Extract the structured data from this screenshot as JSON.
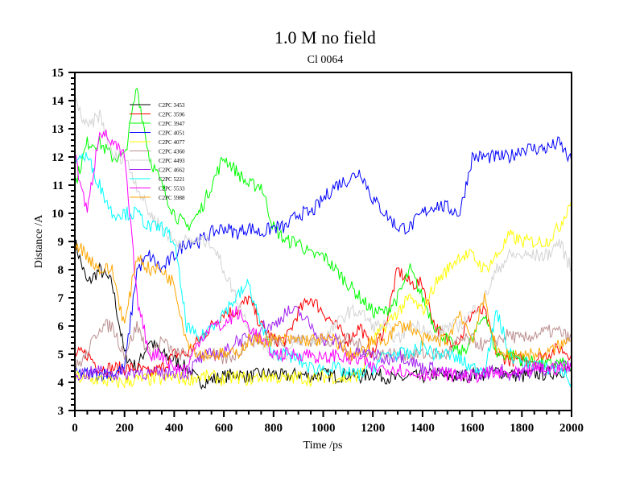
{
  "chart_data": {
    "type": "line",
    "title": "1.0 M no field",
    "subtitle": "Cl 0064",
    "xlabel": "Time /ps",
    "ylabel": "Distance /A",
    "xlim": [
      0,
      2000
    ],
    "ylim": [
      3,
      15
    ],
    "xticks": [
      0,
      200,
      400,
      600,
      800,
      1000,
      1200,
      1400,
      1600,
      1800,
      2000
    ],
    "yticks": [
      3,
      4,
      5,
      6,
      7,
      8,
      9,
      10,
      11,
      12,
      13,
      14,
      15
    ],
    "legend_position": "top-left",
    "x": [
      0,
      50,
      100,
      150,
      200,
      250,
      300,
      350,
      400,
      450,
      500,
      550,
      600,
      650,
      700,
      750,
      800,
      850,
      900,
      950,
      1000,
      1050,
      1100,
      1150,
      1200,
      1250,
      1300,
      1350,
      1400,
      1450,
      1500,
      1550,
      1600,
      1650,
      1700,
      1750,
      1800,
      1850,
      1900,
      1950,
      2000
    ],
    "series": [
      {
        "name": "C2PC 3453",
        "color": "#000000",
        "values": [
          9,
          7.5,
          8,
          7.5,
          5,
          4.5,
          5.5,
          5,
          4.8,
          4.5,
          4,
          4.1,
          4.2,
          4.3,
          4.2,
          4.3,
          4.3,
          4.2,
          4.3,
          4.2,
          4.3,
          4.2,
          4.3,
          4.2,
          4.3,
          4.2,
          4.1,
          4.2,
          4.2,
          4.3,
          4.2,
          4.2,
          4.3,
          4.3,
          4.4,
          4.3,
          4.2,
          4.3,
          4.3,
          4.4,
          4.4
        ]
      },
      {
        "name": "C2PC 3596",
        "color": "#ff0000",
        "values": [
          5,
          5,
          4.5,
          4.5,
          4.5,
          4.5,
          4.3,
          4.5,
          5,
          5,
          5.5,
          6,
          6.5,
          6.5,
          7,
          6,
          5.5,
          5.5,
          6.5,
          7,
          6.5,
          6,
          5.5,
          6,
          5,
          6,
          8,
          7.5,
          7.5,
          6,
          5.5,
          5.5,
          6.5,
          6.5,
          5,
          4.8,
          4.8,
          4.8,
          5,
          5.2,
          5
        ]
      },
      {
        "name": "C2PC 3947",
        "color": "#00ff00",
        "values": [
          11,
          12.5,
          12.5,
          12,
          12,
          14.5,
          12,
          11,
          10,
          9.5,
          10,
          11,
          12,
          11.5,
          11,
          11,
          9.5,
          9,
          9,
          8.5,
          8.5,
          8,
          7.5,
          7,
          6.5,
          6.5,
          7,
          8,
          7,
          6,
          5.5,
          5,
          5.5,
          6.5,
          5,
          5,
          4.8,
          4.7,
          4.6,
          4.7,
          4.5
        ]
      },
      {
        "name": "C2PC 4051",
        "color": "#0000ff",
        "values": [
          4.3,
          4.3,
          4.3,
          4.3,
          4.5,
          8,
          8.5,
          8,
          8.5,
          9,
          9,
          9.3,
          9.5,
          9.3,
          9.5,
          9.3,
          9.5,
          9.5,
          10,
          10,
          10.5,
          11,
          11.2,
          11.5,
          10.5,
          10,
          9.5,
          9.5,
          10,
          10.3,
          10.2,
          10,
          12,
          12,
          12,
          12,
          12.3,
          12.3,
          12.3,
          12.5,
          11.8
        ]
      },
      {
        "name": "C2PC 4077",
        "color": "#ffff00",
        "values": [
          4.2,
          4.1,
          4.1,
          4,
          4,
          4.1,
          4.1,
          4.1,
          4.2,
          4.1,
          4.2,
          4.2,
          4.1,
          4.2,
          4.1,
          4.2,
          4.2,
          4.1,
          4.2,
          4.1,
          4.2,
          4.2,
          4.1,
          4.3,
          5.5,
          6,
          6.5,
          7,
          6.5,
          7.5,
          8,
          8.5,
          8.5,
          8,
          8.5,
          9.2,
          9,
          9,
          9,
          9.5,
          10.5
        ]
      },
      {
        "name": "C2PC 4360",
        "color": "#bc8f8f",
        "values": [
          4.5,
          5,
          6,
          6,
          5,
          6,
          5,
          5.5,
          5,
          5,
          5,
          5,
          4.8,
          5,
          5.5,
          5.5,
          5.5,
          5.5,
          5.5,
          5.5,
          5.5,
          5.5,
          5.5,
          5.3,
          5,
          5,
          5,
          5,
          5,
          5,
          5,
          5.5,
          5.5,
          5.3,
          5.5,
          5.7,
          5.5,
          5.7,
          5.8,
          5.8,
          5.5
        ]
      },
      {
        "name": "C2PC 4493",
        "color": "#d3d3d3",
        "values": [
          14,
          13,
          13.5,
          12,
          12,
          11,
          10,
          9.5,
          9,
          9,
          9,
          9,
          8,
          7,
          6,
          5.5,
          5,
          5,
          5.5,
          5.5,
          5.5,
          6,
          6.5,
          6.5,
          6,
          6,
          5.5,
          6,
          6,
          5.5,
          6,
          6,
          6.5,
          7,
          8,
          8.5,
          8.5,
          8.5,
          8.5,
          9,
          8
        ]
      },
      {
        "name": "C2PC 4662",
        "color": "#a020f0",
        "values": [
          4.3,
          4.3,
          4.4,
          4.3,
          4.3,
          4.4,
          4.3,
          4.3,
          4.4,
          4.3,
          4.8,
          5,
          5,
          5.5,
          5.5,
          6,
          6,
          6.5,
          6.5,
          6,
          5.5,
          5.5,
          5,
          5,
          5,
          4.8,
          5,
          4.8,
          4.5,
          4.5,
          4.3,
          4.2,
          4.3,
          4.3,
          4.5,
          4.3,
          4.3,
          4.4,
          4.5,
          4.6,
          4.5
        ]
      },
      {
        "name": "C2PC 5221",
        "color": "#00ffff",
        "values": [
          12,
          12,
          11,
          10,
          10,
          10,
          9.5,
          9.5,
          9,
          6,
          5.5,
          6,
          6.5,
          7,
          7.5,
          6,
          5,
          5,
          4.8,
          4.5,
          4.5,
          4.5,
          4.3,
          4.3,
          4.5,
          5,
          5,
          5,
          5.3,
          5,
          5,
          4.8,
          4.5,
          4.5,
          6.5,
          5,
          4.7,
          4.7,
          4.5,
          4.5,
          4
        ]
      },
      {
        "name": "C2PC 5533",
        "color": "#ff00ff",
        "values": [
          12,
          10,
          13,
          12.5,
          12,
          7,
          5,
          5,
          4.5,
          4.5,
          5.5,
          6,
          6,
          6.5,
          6,
          5.5,
          5,
          5,
          5,
          5,
          4.8,
          5,
          4.8,
          4.8,
          4.5,
          4.5,
          4.5,
          4.3,
          4.3,
          4.3,
          4.3,
          4.2,
          4.2,
          4.3,
          4.3,
          4.3,
          4.3,
          4.5,
          4.5,
          4.5,
          4.5
        ]
      },
      {
        "name": "C2PC 5988",
        "color": "#ffa500",
        "values": [
          9,
          8.5,
          8,
          8,
          6,
          8.5,
          8,
          8,
          7.5,
          5.5,
          5,
          5,
          5,
          5,
          5.5,
          5.5,
          5.5,
          5.5,
          5.5,
          5.5,
          5.5,
          5.5,
          5,
          5,
          5.5,
          5.5,
          6,
          6,
          5.5,
          5.5,
          5.5,
          6.5,
          5.5,
          7,
          5,
          5,
          5,
          5,
          5,
          5.3,
          5.5
        ]
      }
    ]
  }
}
